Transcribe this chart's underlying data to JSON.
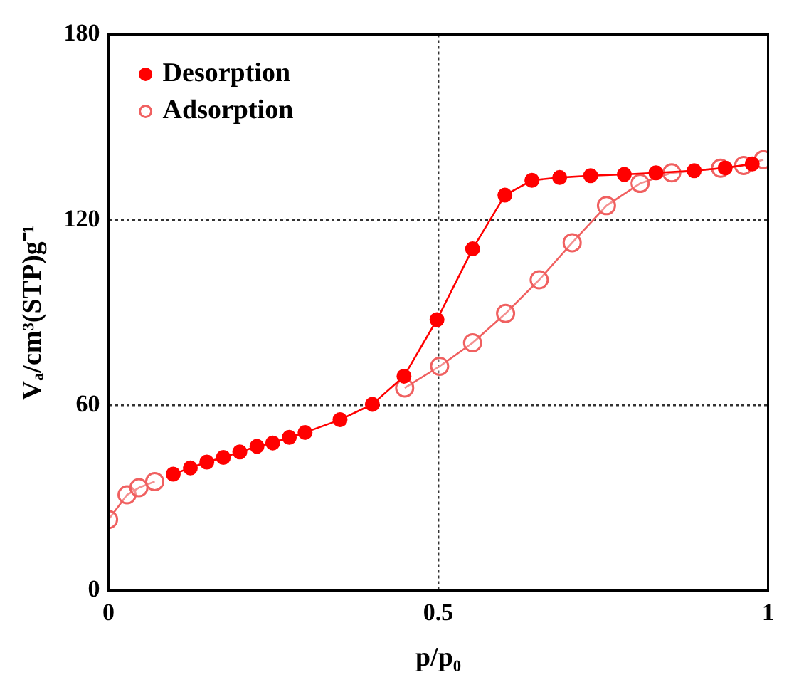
{
  "chart_data": {
    "type": "line",
    "xlabel": "p/p₀",
    "ylabel": "Vₐ/cm³(STP)g⁻¹",
    "xlim": [
      0,
      1
    ],
    "ylim": [
      0,
      180
    ],
    "xticks": [
      0,
      0.5,
      1
    ],
    "yticks": [
      0,
      60,
      120,
      180
    ],
    "grid": true,
    "legend": "top left",
    "marker": "circle",
    "series": [
      {
        "name": "Desorption",
        "color": "#ff0000",
        "x": [
          0.098,
          0.124,
          0.149,
          0.174,
          0.199,
          0.225,
          0.249,
          0.274,
          0.298,
          0.351,
          0.4,
          0.448,
          0.498,
          0.552,
          0.601,
          0.642,
          0.684,
          0.731,
          0.782,
          0.83,
          0.888,
          0.935,
          0.976
        ],
        "values": [
          37.7,
          39.7,
          41.6,
          43.1,
          44.9,
          46.7,
          47.8,
          49.6,
          51.2,
          55.3,
          60.3,
          69.4,
          87.7,
          110.6,
          128.0,
          132.8,
          133.7,
          134.3,
          134.7,
          135.2,
          135.9,
          136.8,
          138.1
        ]
      },
      {
        "name": "Adsorption",
        "color": "#f06060",
        "x": [
          0,
          0.028,
          0.046,
          0.07,
          0.2,
          0.449,
          0.502,
          0.552,
          0.602,
          0.653,
          0.703,
          0.755,
          0.806,
          0.854,
          0.928,
          0.963,
          0.993
        ],
        "values": [
          23.0,
          31.0,
          33.3,
          35.3,
          null,
          65.6,
          72.6,
          80.2,
          89.7,
          100.6,
          112.6,
          124.6,
          131.8,
          135.2,
          136.7,
          137.6,
          139.5
        ]
      }
    ]
  }
}
